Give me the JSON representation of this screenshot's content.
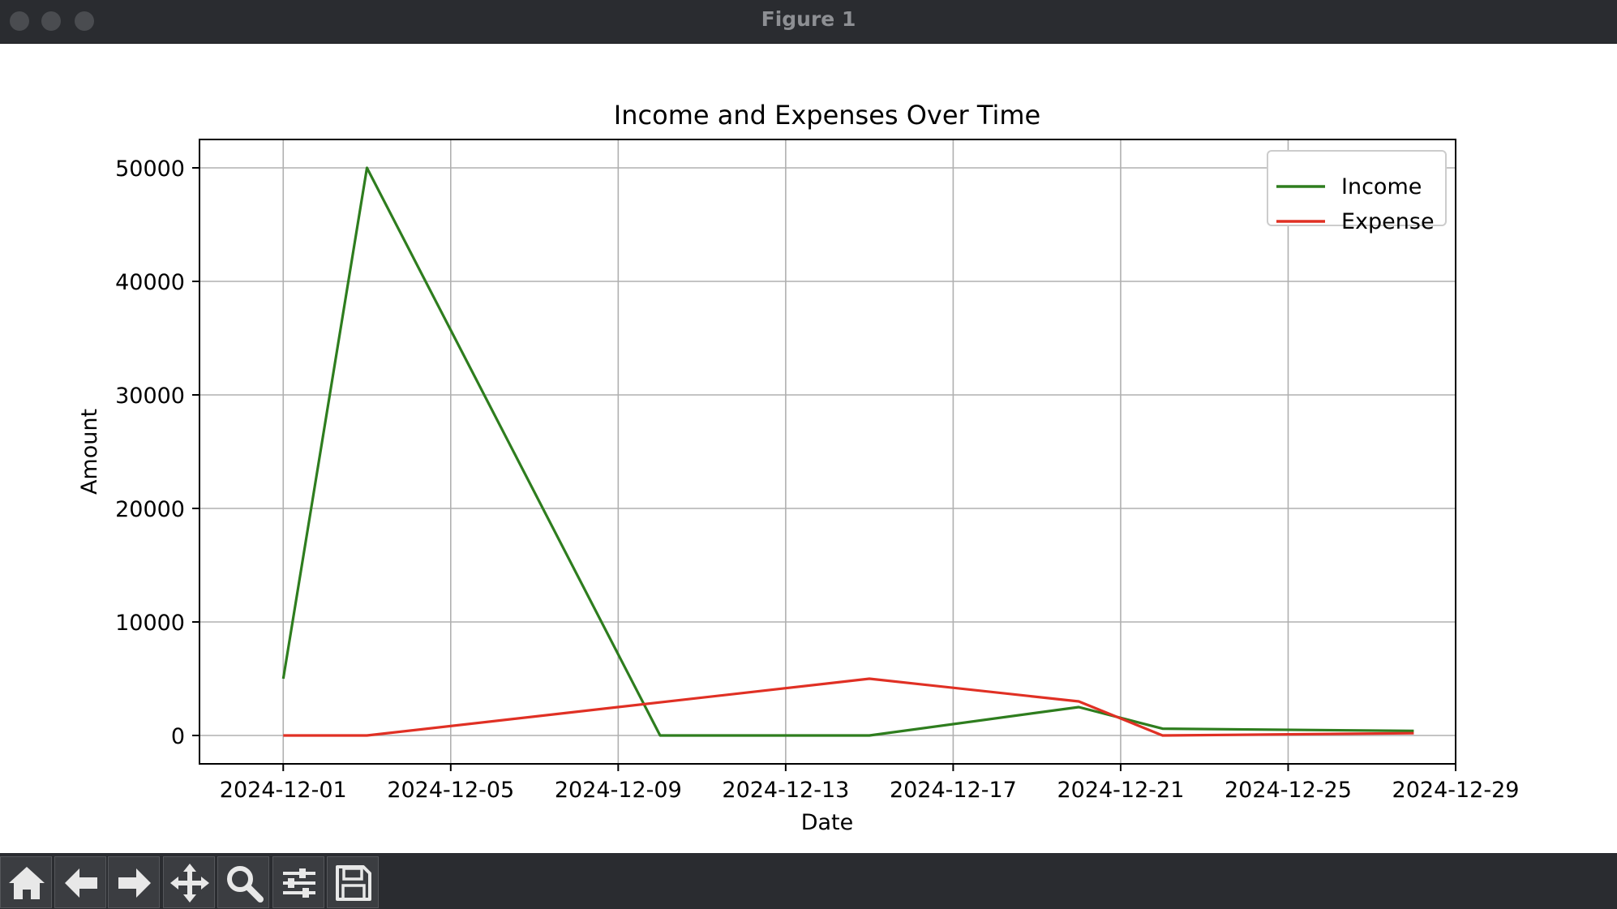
{
  "window": {
    "title": "Figure 1"
  },
  "toolbar": {
    "tools": [
      {
        "name": "home-icon"
      },
      {
        "name": "back-arrow-icon"
      },
      {
        "name": "forward-arrow-icon"
      },
      {
        "name": "pan-icon"
      },
      {
        "name": "zoom-icon"
      },
      {
        "name": "configure-subplots-icon"
      },
      {
        "name": "save-icon"
      }
    ]
  },
  "chart_data": {
    "type": "line",
    "title": "Income and Expenses Over Time",
    "xlabel": "Date",
    "ylabel": "Amount",
    "x_ticks": [
      "2024-12-01",
      "2024-12-05",
      "2024-12-09",
      "2024-12-13",
      "2024-12-17",
      "2024-12-21",
      "2024-12-25",
      "2024-12-29"
    ],
    "y_ticks": [
      0,
      10000,
      20000,
      30000,
      40000,
      50000
    ],
    "xlim": [
      "2024-11-29",
      "2024-12-29"
    ],
    "ylim": [
      -2500,
      52500
    ],
    "grid": true,
    "legend": "upper right",
    "series": [
      {
        "name": "Income",
        "color": "#2e7d1e",
        "points": [
          {
            "x": "2024-12-01",
            "y": 5000
          },
          {
            "x": "2024-12-03",
            "y": 50000
          },
          {
            "x": "2024-12-10",
            "y": 0
          },
          {
            "x": "2024-12-15",
            "y": 0
          },
          {
            "x": "2024-12-20",
            "y": 2500
          },
          {
            "x": "2024-12-22",
            "y": 600
          },
          {
            "x": "2024-12-28",
            "y": 400
          }
        ]
      },
      {
        "name": "Expense",
        "color": "#e03024",
        "points": [
          {
            "x": "2024-12-01",
            "y": 0
          },
          {
            "x": "2024-12-03",
            "y": 0
          },
          {
            "x": "2024-12-15",
            "y": 5000
          },
          {
            "x": "2024-12-20",
            "y": 3000
          },
          {
            "x": "2024-12-22",
            "y": 0
          },
          {
            "x": "2024-12-28",
            "y": 200
          }
        ]
      }
    ]
  }
}
